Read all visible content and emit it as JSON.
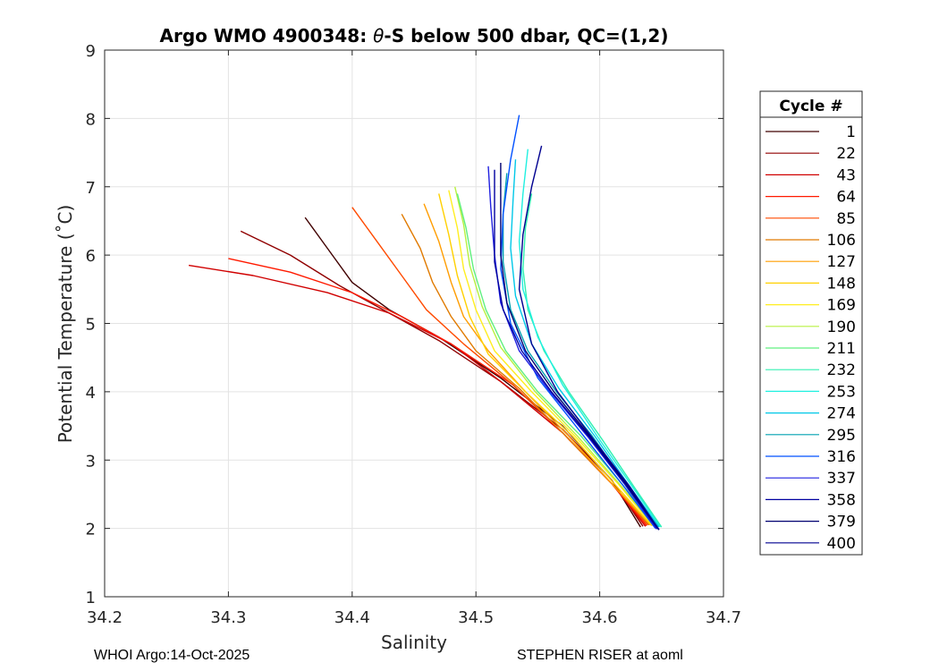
{
  "chart_data": {
    "type": "line",
    "title_prefix": "Argo WMO 4900348: ",
    "title_theta": "θ",
    "title_suffix": "-S below 500 dbar,  QC=(1,2)",
    "xlabel": "Salinity",
    "ylabel": "Potential Temperature (˚C)",
    "xlim": [
      34.2,
      34.7
    ],
    "ylim": [
      1,
      9
    ],
    "x_ticks": [
      "34.2",
      "34.3",
      "34.4",
      "34.5",
      "34.6",
      "34.7"
    ],
    "y_ticks": [
      "1",
      "2",
      "3",
      "4",
      "5",
      "6",
      "7",
      "8",
      "9"
    ],
    "grid": true,
    "legend_title": "Cycle #",
    "legend": [
      {
        "label": "1",
        "color": "#400000"
      },
      {
        "label": "22",
        "color": "#900000"
      },
      {
        "label": "43",
        "color": "#d00000"
      },
      {
        "label": "64",
        "color": "#ff1a00"
      },
      {
        "label": "85",
        "color": "#ff4a00"
      },
      {
        "label": "106",
        "color": "#e07a00"
      },
      {
        "label": "127",
        "color": "#ff9d00"
      },
      {
        "label": "148",
        "color": "#ffd000"
      },
      {
        "label": "169",
        "color": "#ffee20"
      },
      {
        "label": "190",
        "color": "#b8f040"
      },
      {
        "label": "211",
        "color": "#60f080"
      },
      {
        "label": "232",
        "color": "#30f0b0"
      },
      {
        "label": "253",
        "color": "#20f0e0"
      },
      {
        "label": "274",
        "color": "#00c8e8"
      },
      {
        "label": "295",
        "color": "#00a0b0"
      },
      {
        "label": "316",
        "color": "#0050ff"
      },
      {
        "label": "337",
        "color": "#2020e0"
      },
      {
        "label": "358",
        "color": "#0000a0"
      },
      {
        "label": "379",
        "color": "#000070"
      },
      {
        "label": "400",
        "color": "#000090"
      }
    ],
    "series": [
      {
        "name": "1",
        "color": "#400000",
        "points": [
          [
            34.362,
            6.55
          ],
          [
            34.38,
            6.1
          ],
          [
            34.4,
            5.6
          ],
          [
            34.43,
            5.2
          ],
          [
            34.47,
            4.8
          ],
          [
            34.52,
            4.2
          ],
          [
            34.57,
            3.5
          ],
          [
            34.61,
            2.7
          ],
          [
            34.633,
            2.02
          ]
        ]
      },
      {
        "name": "22",
        "color": "#900000",
        "points": [
          [
            34.31,
            6.35
          ],
          [
            34.35,
            6.0
          ],
          [
            34.39,
            5.55
          ],
          [
            34.43,
            5.15
          ],
          [
            34.47,
            4.75
          ],
          [
            34.52,
            4.15
          ],
          [
            34.57,
            3.45
          ],
          [
            34.61,
            2.7
          ],
          [
            34.635,
            2.03
          ]
        ]
      },
      {
        "name": "43",
        "color": "#d00000",
        "points": [
          [
            34.268,
            5.85
          ],
          [
            34.32,
            5.7
          ],
          [
            34.38,
            5.45
          ],
          [
            34.43,
            5.15
          ],
          [
            34.48,
            4.7
          ],
          [
            34.52,
            4.15
          ],
          [
            34.57,
            3.4
          ],
          [
            34.61,
            2.65
          ],
          [
            34.637,
            2.03
          ]
        ]
      },
      {
        "name": "64",
        "color": "#ff1a00",
        "points": [
          [
            34.3,
            5.95
          ],
          [
            34.35,
            5.75
          ],
          [
            34.4,
            5.45
          ],
          [
            34.44,
            5.1
          ],
          [
            34.48,
            4.7
          ],
          [
            34.53,
            4.1
          ],
          [
            34.57,
            3.4
          ],
          [
            34.61,
            2.65
          ],
          [
            34.638,
            2.04
          ]
        ]
      },
      {
        "name": "85",
        "color": "#ff4a00",
        "points": [
          [
            34.4,
            6.7
          ],
          [
            34.42,
            6.2
          ],
          [
            34.44,
            5.7
          ],
          [
            34.46,
            5.2
          ],
          [
            34.49,
            4.7
          ],
          [
            34.53,
            4.1
          ],
          [
            34.57,
            3.4
          ],
          [
            34.61,
            2.65
          ],
          [
            34.639,
            2.05
          ]
        ]
      },
      {
        "name": "106",
        "color": "#e07a00",
        "points": [
          [
            34.44,
            6.6
          ],
          [
            34.455,
            6.1
          ],
          [
            34.465,
            5.6
          ],
          [
            34.48,
            5.1
          ],
          [
            34.5,
            4.6
          ],
          [
            34.535,
            4.05
          ],
          [
            34.57,
            3.4
          ],
          [
            34.61,
            2.65
          ],
          [
            34.64,
            2.05
          ]
        ]
      },
      {
        "name": "127",
        "color": "#ff9d00",
        "points": [
          [
            34.458,
            6.75
          ],
          [
            34.47,
            6.2
          ],
          [
            34.48,
            5.6
          ],
          [
            34.49,
            5.1
          ],
          [
            34.51,
            4.6
          ],
          [
            34.54,
            4.0
          ],
          [
            34.575,
            3.35
          ],
          [
            34.61,
            2.65
          ],
          [
            34.641,
            2.05
          ]
        ]
      },
      {
        "name": "148",
        "color": "#ffd000",
        "points": [
          [
            34.47,
            6.9
          ],
          [
            34.478,
            6.3
          ],
          [
            34.485,
            5.7
          ],
          [
            34.495,
            5.1
          ],
          [
            34.51,
            4.55
          ],
          [
            34.54,
            4.0
          ],
          [
            34.578,
            3.35
          ],
          [
            34.612,
            2.65
          ],
          [
            34.642,
            2.04
          ]
        ]
      },
      {
        "name": "169",
        "color": "#ffee20",
        "points": [
          [
            34.478,
            6.95
          ],
          [
            34.485,
            6.4
          ],
          [
            34.49,
            5.8
          ],
          [
            34.5,
            5.2
          ],
          [
            34.515,
            4.6
          ],
          [
            34.545,
            4.0
          ],
          [
            34.58,
            3.35
          ],
          [
            34.615,
            2.65
          ],
          [
            34.643,
            2.04
          ]
        ]
      },
      {
        "name": "190",
        "color": "#b8f040",
        "points": [
          [
            34.483,
            7.0
          ],
          [
            34.49,
            6.45
          ],
          [
            34.495,
            5.85
          ],
          [
            34.505,
            5.25
          ],
          [
            34.52,
            4.65
          ],
          [
            34.548,
            4.0
          ],
          [
            34.582,
            3.35
          ],
          [
            34.616,
            2.65
          ],
          [
            34.644,
            2.04
          ]
        ]
      },
      {
        "name": "211",
        "color": "#60f080",
        "points": [
          [
            34.485,
            6.9
          ],
          [
            34.492,
            6.4
          ],
          [
            34.498,
            5.8
          ],
          [
            34.508,
            5.2
          ],
          [
            34.524,
            4.6
          ],
          [
            34.55,
            4.0
          ],
          [
            34.585,
            3.35
          ],
          [
            34.618,
            2.65
          ],
          [
            34.646,
            2.03
          ]
        ]
      },
      {
        "name": "232",
        "color": "#30f0b0",
        "points": [
          [
            34.545,
            6.9
          ],
          [
            34.54,
            6.4
          ],
          [
            34.538,
            5.8
          ],
          [
            34.542,
            5.2
          ],
          [
            34.555,
            4.6
          ],
          [
            34.575,
            4.0
          ],
          [
            34.602,
            3.3
          ],
          [
            34.628,
            2.6
          ],
          [
            34.65,
            2.02
          ]
        ]
      },
      {
        "name": "253",
        "color": "#20f0e0",
        "points": [
          [
            34.542,
            7.55
          ],
          [
            34.538,
            6.9
          ],
          [
            34.535,
            6.2
          ],
          [
            34.538,
            5.5
          ],
          [
            34.55,
            4.8
          ],
          [
            34.57,
            4.1
          ],
          [
            34.598,
            3.35
          ],
          [
            34.626,
            2.62
          ],
          [
            34.649,
            2.02
          ]
        ]
      },
      {
        "name": "274",
        "color": "#00c8e8",
        "points": [
          [
            34.532,
            7.4
          ],
          [
            34.53,
            6.8
          ],
          [
            34.528,
            6.1
          ],
          [
            34.532,
            5.4
          ],
          [
            34.545,
            4.7
          ],
          [
            34.567,
            4.05
          ],
          [
            34.596,
            3.35
          ],
          [
            34.624,
            2.62
          ],
          [
            34.648,
            2.02
          ]
        ]
      },
      {
        "name": "295",
        "color": "#00a0b0",
        "points": [
          [
            34.525,
            7.2
          ],
          [
            34.522,
            6.6
          ],
          [
            34.522,
            5.9
          ],
          [
            34.528,
            5.2
          ],
          [
            34.542,
            4.6
          ],
          [
            34.565,
            4.0
          ],
          [
            34.594,
            3.35
          ],
          [
            34.622,
            2.63
          ],
          [
            34.647,
            2.02
          ]
        ]
      },
      {
        "name": "316",
        "color": "#0050ff",
        "points": [
          [
            34.535,
            8.05
          ],
          [
            34.528,
            7.4
          ],
          [
            34.522,
            6.6
          ],
          [
            34.52,
            5.8
          ],
          [
            34.528,
            5.0
          ],
          [
            34.55,
            4.2
          ],
          [
            34.585,
            3.4
          ],
          [
            34.618,
            2.65
          ],
          [
            34.645,
            2.0
          ]
        ]
      },
      {
        "name": "337",
        "color": "#2020e0",
        "points": [
          [
            34.51,
            7.3
          ],
          [
            34.512,
            6.7
          ],
          [
            34.515,
            6.0
          ],
          [
            34.52,
            5.3
          ],
          [
            34.535,
            4.6
          ],
          [
            34.56,
            4.0
          ],
          [
            34.59,
            3.35
          ],
          [
            34.62,
            2.65
          ],
          [
            34.646,
            1.99
          ]
        ]
      },
      {
        "name": "358",
        "color": "#0000a0",
        "points": [
          [
            34.515,
            7.25
          ],
          [
            34.515,
            6.6
          ],
          [
            34.515,
            5.9
          ],
          [
            34.522,
            5.2
          ],
          [
            34.537,
            4.6
          ],
          [
            34.561,
            4.0
          ],
          [
            34.591,
            3.35
          ],
          [
            34.621,
            2.64
          ],
          [
            34.647,
            1.99
          ]
        ]
      },
      {
        "name": "379",
        "color": "#000070",
        "points": [
          [
            34.52,
            7.35
          ],
          [
            34.52,
            6.7
          ],
          [
            34.52,
            6.0
          ],
          [
            34.525,
            5.3
          ],
          [
            34.54,
            4.6
          ],
          [
            34.563,
            4.0
          ],
          [
            34.592,
            3.35
          ],
          [
            34.622,
            2.64
          ],
          [
            34.648,
            1.98
          ]
        ]
      },
      {
        "name": "400",
        "color": "#000090",
        "points": [
          [
            34.553,
            7.6
          ],
          [
            34.545,
            7.0
          ],
          [
            34.538,
            6.3
          ],
          [
            34.535,
            5.5
          ],
          [
            34.545,
            4.7
          ],
          [
            34.566,
            4.0
          ],
          [
            34.595,
            3.3
          ],
          [
            34.624,
            2.62
          ],
          [
            34.648,
            1.98
          ]
        ]
      }
    ]
  },
  "footer": {
    "left": "WHOI Argo:14-Oct-2025",
    "right": "STEPHEN RISER at aoml"
  }
}
